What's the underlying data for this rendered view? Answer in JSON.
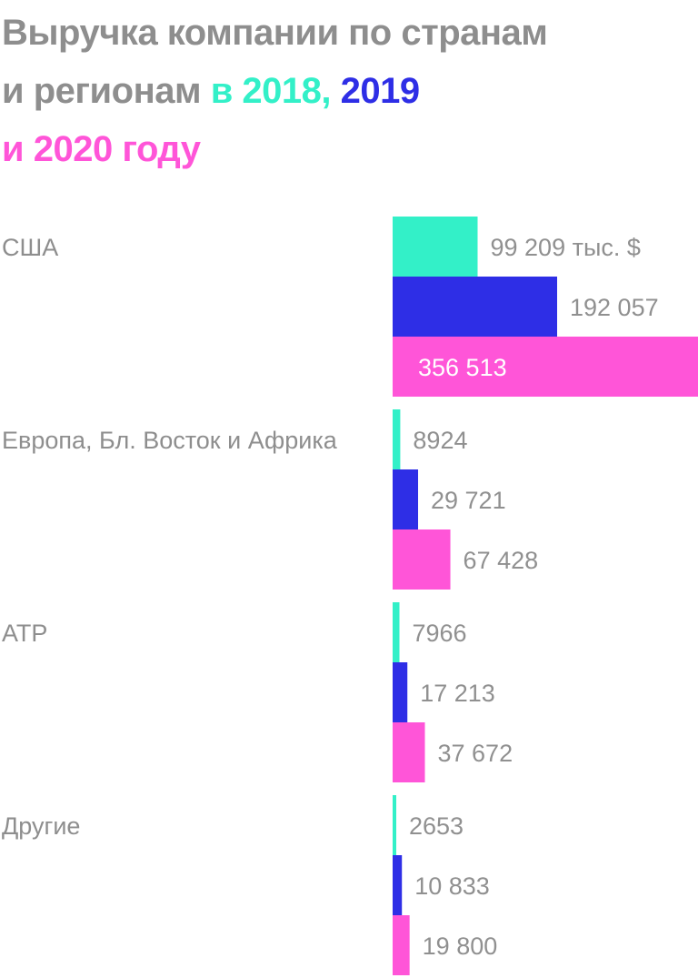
{
  "title": {
    "line1": "Выручка компании по странам",
    "line2_prefix": "и регионам",
    "year_2018": "в 2018,",
    "year_2019": "2019",
    "line3_prefix": "и",
    "year_2020": "2020",
    "suffix": "году"
  },
  "colors": {
    "title_gray": "#8e8e8e",
    "label_gray": "#8e8e8e",
    "value_gray": "#909090",
    "series_2018": "#33f0c8",
    "series_2019": "#2e2ee6",
    "series_2020": "#ff55d8",
    "value_on_bar": "#ffffff"
  },
  "chart_data": {
    "type": "bar",
    "orientation": "horizontal",
    "unit": "тыс. $",
    "categories": [
      "США",
      "Европа, Бл. Восток и Африка",
      "АТР",
      "Другие"
    ],
    "series": [
      {
        "name": "2018",
        "values": [
          99209,
          8924,
          7966,
          2653
        ],
        "labels": [
          "99 209 тыс. $",
          "8924",
          "7966",
          "2653"
        ]
      },
      {
        "name": "2019",
        "values": [
          192057,
          29721,
          17213,
          10833
        ],
        "labels": [
          "192 057",
          "29 721",
          "17 213",
          "10 833"
        ]
      },
      {
        "name": "2020",
        "values": [
          356513,
          67428,
          37672,
          19800
        ],
        "labels": [
          "356 513",
          "67 428",
          "37 672",
          "19 800"
        ]
      }
    ],
    "xlim": [
      0,
      356513
    ],
    "grid": false,
    "legend": "none"
  }
}
